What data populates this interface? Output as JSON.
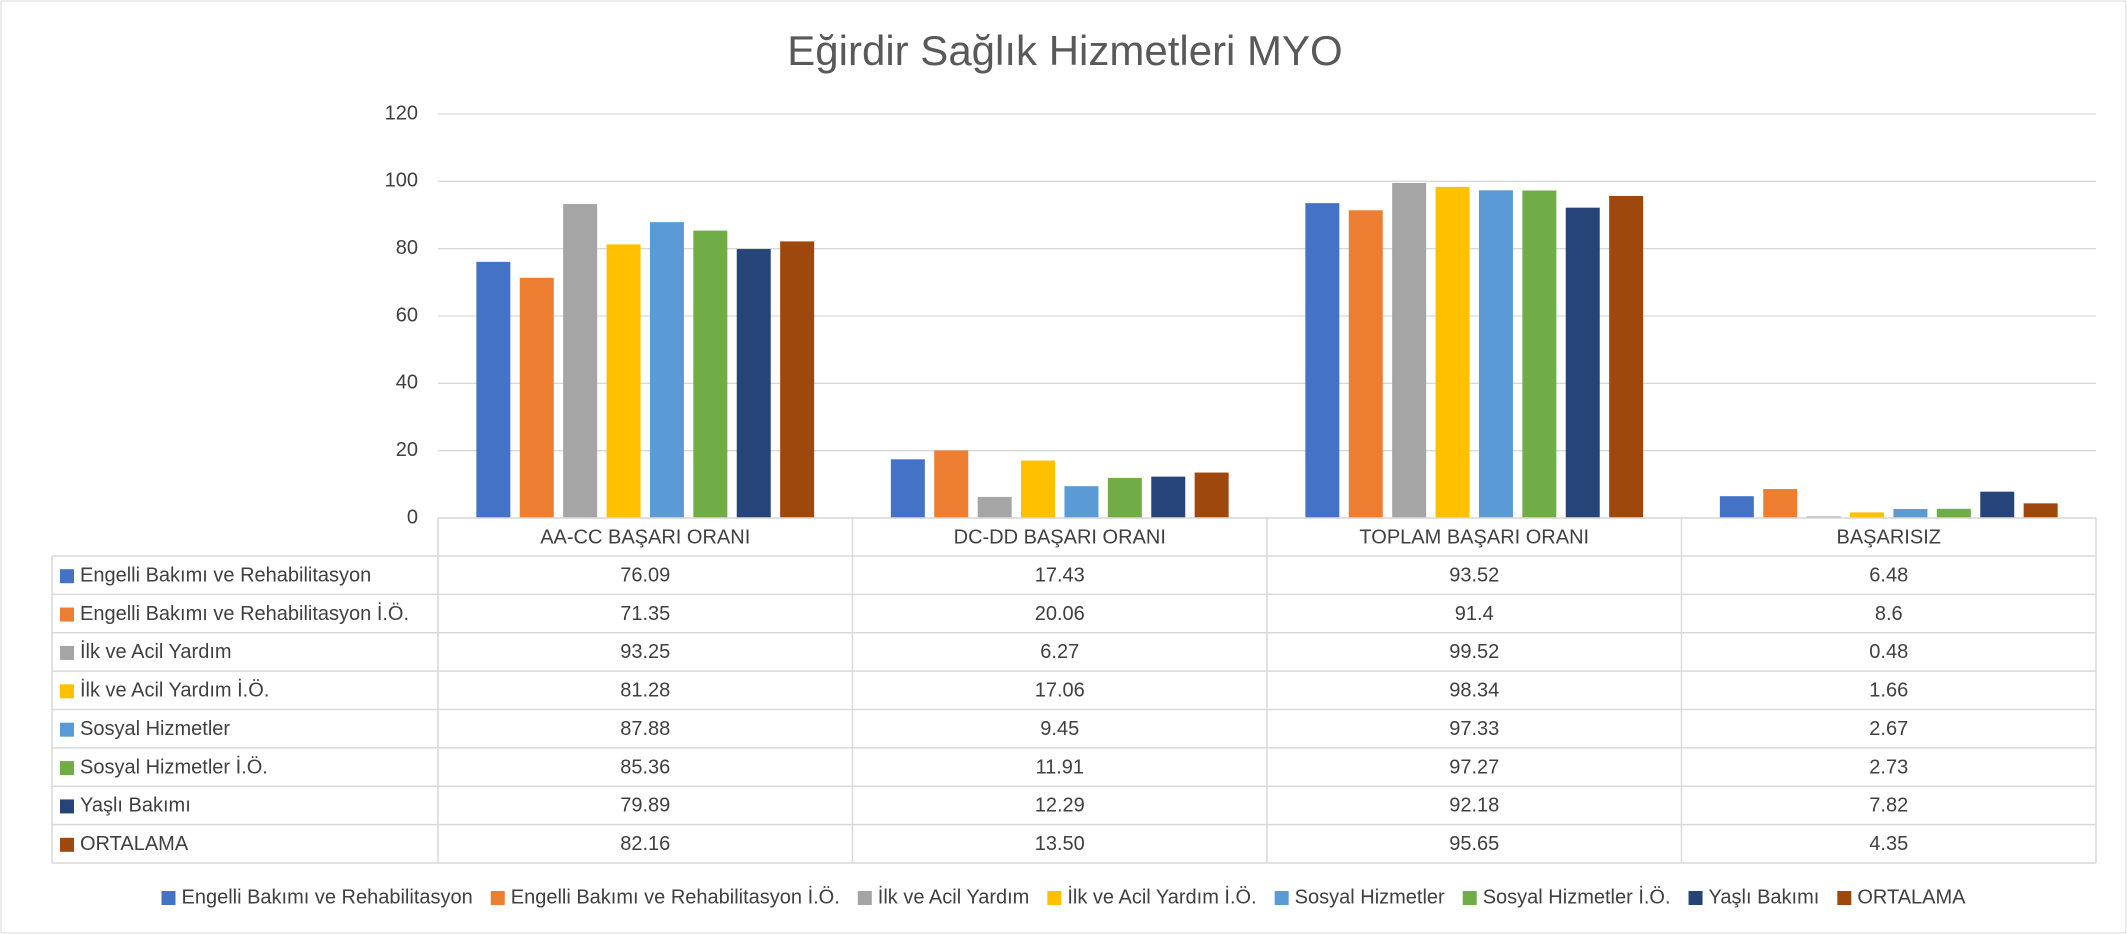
{
  "chart_data": {
    "type": "bar",
    "title": "Eğirdir Sağlık Hizmetleri MYO",
    "categories": [
      "AA-CC BAŞARI ORANI",
      "DC-DD BAŞARI ORANI",
      "TOPLAM BAŞARI ORANI",
      "BAŞARISIZ"
    ],
    "series": [
      {
        "name": "Engelli Bakımı ve Rehabilitasyon",
        "color": "#4472c4",
        "values": [
          76.09,
          17.43,
          93.52,
          6.48
        ]
      },
      {
        "name": "Engelli Bakımı ve Rehabilitasyon İ.Ö.",
        "color": "#ed7d31",
        "values": [
          71.35,
          20.06,
          91.4,
          8.6
        ]
      },
      {
        "name": "İlk ve Acil Yardım",
        "color": "#a5a5a5",
        "values": [
          93.25,
          6.27,
          99.52,
          0.48
        ]
      },
      {
        "name": "İlk ve Acil Yardım İ.Ö.",
        "color": "#ffc000",
        "values": [
          81.28,
          17.06,
          98.34,
          1.66
        ]
      },
      {
        "name": "Sosyal Hizmetler",
        "color": "#5b9bd5",
        "values": [
          87.88,
          9.45,
          97.33,
          2.67
        ]
      },
      {
        "name": "Sosyal Hizmetler İ.Ö.",
        "color": "#70ad47",
        "values": [
          85.36,
          11.91,
          97.27,
          2.73
        ]
      },
      {
        "name": "Yaşlı Bakımı",
        "color": "#264478",
        "values": [
          79.89,
          12.29,
          92.18,
          7.82
        ]
      },
      {
        "name": "ORTALAMA",
        "color": "#9e480e",
        "values": [
          82.16,
          13.5,
          95.65,
          4.35
        ],
        "value_labels": [
          "82.16",
          "13.50",
          "95.65",
          "4.35"
        ]
      }
    ],
    "ylim": [
      0,
      120
    ],
    "yticks": [
      0,
      20,
      40,
      60,
      80,
      100,
      120
    ],
    "grid": true,
    "legend": "bottom"
  }
}
